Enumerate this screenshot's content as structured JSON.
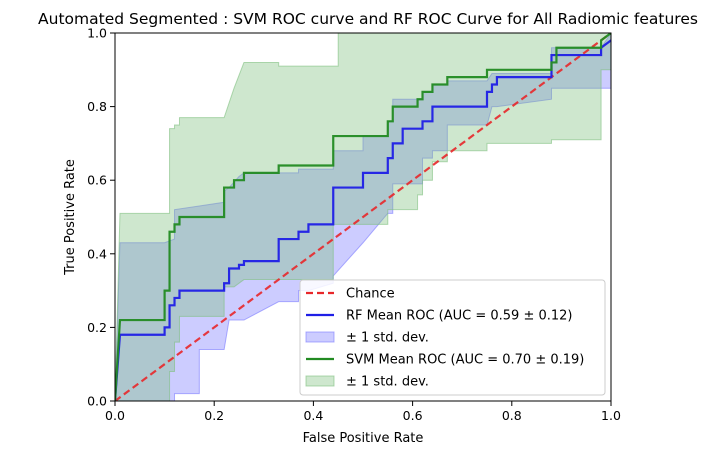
{
  "chart_data": {
    "type": "line",
    "title": "Automated Segmented : SVM ROC curve and RF ROC Curve for All Radiomic features",
    "xlabel": "False Positive Rate",
    "ylabel": "True Positive Rate",
    "xlim": [
      0,
      1
    ],
    "ylim": [
      0,
      1
    ],
    "xticks": [
      "0.0",
      "0.2",
      "0.4",
      "0.6",
      "0.8",
      "1.0"
    ],
    "yticks": [
      "0.0",
      "0.2",
      "0.4",
      "0.6",
      "0.8",
      "1.0"
    ],
    "grid": false,
    "legend_position": "lower-right",
    "series": [
      {
        "name": "Chance",
        "style": "dashed",
        "color": "#e8272a",
        "x": [
          0,
          1
        ],
        "y": [
          0,
          1
        ]
      },
      {
        "name": "RF Mean ROC (AUC = 0.59 ± 0.12)",
        "style": "solid",
        "color": "#1f1fe6",
        "x": [
          0,
          0.01,
          0.01,
          0.1,
          0.1,
          0.11,
          0.11,
          0.12,
          0.12,
          0.13,
          0.13,
          0.22,
          0.22,
          0.23,
          0.23,
          0.25,
          0.25,
          0.26,
          0.26,
          0.33,
          0.33,
          0.37,
          0.37,
          0.39,
          0.39,
          0.44,
          0.44,
          0.5,
          0.5,
          0.55,
          0.55,
          0.56,
          0.56,
          0.58,
          0.58,
          0.62,
          0.62,
          0.64,
          0.64,
          0.67,
          0.67,
          0.75,
          0.75,
          0.76,
          0.76,
          0.77,
          0.77,
          0.88,
          0.88,
          0.98,
          0.98,
          1.0
        ],
        "y": [
          0,
          0.18,
          0.18,
          0.18,
          0.2,
          0.2,
          0.26,
          0.26,
          0.28,
          0.28,
          0.3,
          0.3,
          0.32,
          0.32,
          0.36,
          0.36,
          0.37,
          0.37,
          0.38,
          0.38,
          0.44,
          0.44,
          0.46,
          0.46,
          0.48,
          0.48,
          0.58,
          0.58,
          0.62,
          0.62,
          0.66,
          0.66,
          0.7,
          0.7,
          0.74,
          0.74,
          0.76,
          0.76,
          0.8,
          0.8,
          0.8,
          0.8,
          0.84,
          0.84,
          0.86,
          0.86,
          0.88,
          0.88,
          0.94,
          0.94,
          0.96,
          0.98
        ]
      },
      {
        "name": "± 1 std. dev.",
        "style": "band",
        "color": "#7a7aff",
        "x": [
          0,
          0.01,
          0.04,
          0.1,
          0.1,
          0.12,
          0.12,
          0.17,
          0.17,
          0.22,
          0.22,
          0.23,
          0.25,
          0.26,
          0.33,
          0.33,
          0.37,
          0.37,
          0.39,
          0.44,
          0.44,
          0.5,
          0.5,
          0.55,
          0.55,
          0.56,
          0.56,
          0.62,
          0.62,
          0.64,
          0.64,
          0.67,
          0.67,
          0.75,
          0.76,
          0.77,
          0.88,
          0.88,
          0.98,
          1.0
        ],
        "upper": [
          0,
          0.43,
          0.43,
          0.43,
          0.43,
          0.44,
          0.52,
          0.53,
          0.53,
          0.54,
          0.57,
          0.58,
          0.61,
          0.62,
          0.62,
          0.62,
          0.62,
          0.63,
          0.63,
          0.63,
          0.68,
          0.68,
          0.72,
          0.72,
          0.76,
          0.76,
          0.82,
          0.82,
          0.84,
          0.84,
          0.86,
          0.86,
          0.87,
          0.87,
          0.89,
          0.89,
          0.89,
          0.96,
          0.96,
          1.0
        ],
        "lower": [
          0,
          0,
          0,
          0,
          0,
          0,
          0.02,
          0.02,
          0.14,
          0.14,
          0.14,
          0.22,
          0.22,
          0.22,
          0.27,
          0.27,
          0.27,
          0.3,
          0.3,
          0.32,
          0.34,
          0.43,
          0.43,
          0.51,
          0.51,
          0.51,
          0.59,
          0.59,
          0.66,
          0.66,
          0.68,
          0.68,
          0.75,
          0.75,
          0.8,
          0.8,
          0.82,
          0.85,
          0.85,
          0.85
        ]
      },
      {
        "name": "SVM Mean ROC (AUC = 0.70 ± 0.19)",
        "style": "solid",
        "color": "#228b22",
        "x": [
          0,
          0.01,
          0.01,
          0.1,
          0.1,
          0.11,
          0.11,
          0.12,
          0.12,
          0.13,
          0.13,
          0.22,
          0.22,
          0.24,
          0.24,
          0.26,
          0.26,
          0.28,
          0.28,
          0.33,
          0.33,
          0.44,
          0.44,
          0.55,
          0.55,
          0.56,
          0.56,
          0.61,
          0.61,
          0.62,
          0.62,
          0.64,
          0.64,
          0.67,
          0.67,
          0.75,
          0.75,
          0.88,
          0.88,
          0.89,
          0.89,
          0.98,
          0.98,
          1.0
        ],
        "y": [
          0,
          0.22,
          0.22,
          0.22,
          0.3,
          0.3,
          0.46,
          0.46,
          0.48,
          0.48,
          0.5,
          0.5,
          0.58,
          0.58,
          0.6,
          0.6,
          0.62,
          0.62,
          0.62,
          0.62,
          0.64,
          0.64,
          0.72,
          0.72,
          0.76,
          0.76,
          0.8,
          0.8,
          0.82,
          0.82,
          0.84,
          0.84,
          0.86,
          0.86,
          0.88,
          0.88,
          0.9,
          0.9,
          0.92,
          0.92,
          0.96,
          0.96,
          0.98,
          1.0
        ]
      },
      {
        "name": "± 1 std. dev.",
        "style": "band",
        "color": "#7fbf7f",
        "x": [
          0,
          0.01,
          0.1,
          0.1,
          0.11,
          0.11,
          0.12,
          0.12,
          0.13,
          0.13,
          0.22,
          0.22,
          0.24,
          0.24,
          0.26,
          0.26,
          0.33,
          0.33,
          0.44,
          0.44,
          0.45,
          0.45,
          0.55,
          0.55,
          0.56,
          0.56,
          0.58,
          0.58,
          0.61,
          0.61,
          0.62,
          0.62,
          0.64,
          0.64,
          0.67,
          0.67,
          0.75,
          0.75,
          0.88,
          0.88,
          0.89,
          0.89,
          0.98,
          0.98,
          1.0
        ],
        "upper": [
          0,
          0.51,
          0.51,
          0.51,
          0.51,
          0.74,
          0.74,
          0.75,
          0.75,
          0.77,
          0.77,
          0.77,
          0.85,
          0.85,
          0.92,
          0.92,
          0.92,
          0.91,
          0.91,
          0.91,
          0.91,
          1.0,
          1.0,
          1.0,
          1.0,
          1.0,
          1.0,
          1.0,
          1.0,
          1.0,
          1.0,
          1.0,
          1.0,
          1.0,
          1.0,
          1.0,
          1.0,
          1.0,
          1.0,
          1.0,
          1.0,
          1.0,
          1.0,
          1.0,
          1.0
        ],
        "lower": [
          0,
          0,
          0,
          0,
          0,
          0.08,
          0.08,
          0.16,
          0.16,
          0.23,
          0.23,
          0.31,
          0.31,
          0.31,
          0.33,
          0.33,
          0.33,
          0.33,
          0.33,
          0.48,
          0.48,
          0.48,
          0.48,
          0.52,
          0.52,
          0.52,
          0.52,
          0.52,
          0.52,
          0.56,
          0.56,
          0.6,
          0.6,
          0.65,
          0.65,
          0.68,
          0.68,
          0.7,
          0.7,
          0.71,
          0.71,
          0.71,
          0.71,
          0.9,
          0.9
        ]
      }
    ],
    "legend": [
      {
        "label": "Chance",
        "kind": "dashed",
        "color": "#e8272a"
      },
      {
        "label": "RF Mean ROC (AUC = 0.59 ± 0.12)",
        "kind": "line",
        "color": "#1f1fe6"
      },
      {
        "label": "± 1 std. dev.",
        "kind": "patch",
        "color": "#7a7aff"
      },
      {
        "label": "SVM Mean ROC (AUC = 0.70 ± 0.19)",
        "kind": "line",
        "color": "#228b22"
      },
      {
        "label": "± 1 std. dev.",
        "kind": "patch",
        "color": "#7fbf7f"
      }
    ]
  }
}
